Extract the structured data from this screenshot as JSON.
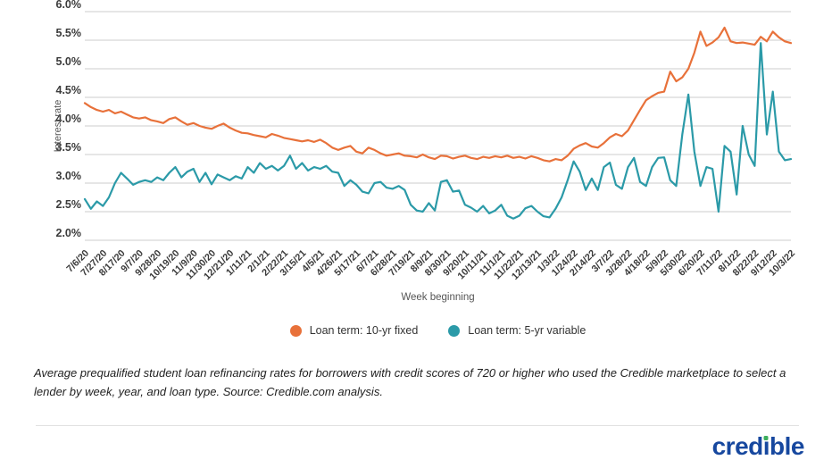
{
  "chart": {
    "y_axis_title": "Interest rate",
    "x_axis_title": "Week beginning"
  },
  "chart_data": {
    "type": "line",
    "title": "",
    "xlabel": "Week beginning",
    "ylabel": "Interest rate",
    "ylim": [
      2.0,
      6.0
    ],
    "grid": true,
    "legend_position": "bottom-center",
    "y_ticks": [
      6.0,
      5.5,
      5.0,
      4.5,
      4.0,
      3.5,
      3.0,
      2.5,
      2.0
    ],
    "y_tick_labels": [
      "6.0%",
      "5.5%",
      "5.0%",
      "4.5%",
      "4.0%",
      "3.5%",
      "3.0%",
      "2.5%",
      "2.0%"
    ],
    "x_tick_every_n_points": 3,
    "x_tick_labels": [
      "7/6/20",
      "7/27/20",
      "8/17/20",
      "9/7/20",
      "9/28/20",
      "10/19/20",
      "11/9/20",
      "11/30/20",
      "12/21/20",
      "1/11/21",
      "2/1/21",
      "2/22/21",
      "3/15/21",
      "4/5/21",
      "4/26/21",
      "5/17/21",
      "6/7/21",
      "6/28/21",
      "7/19/21",
      "8/9/21",
      "8/30/21",
      "9/20/21",
      "10/11/21",
      "11/1/21",
      "11/22/21",
      "12/13/21",
      "1/3/22",
      "1/24/22",
      "2/14/22",
      "3/7/22",
      "3/28/22",
      "4/18/22",
      "5/9/22",
      "5/30/22",
      "6/20/22",
      "7/11/22",
      "8/1/22",
      "8/22/22",
      "9/12/22",
      "10/3/22"
    ],
    "x_unit": "weekly data points, one per week from 7/6/20 to 10/3/22",
    "series": [
      {
        "name": "Loan term: 10-yr fixed",
        "color": "#E8713A",
        "values": [
          4.4,
          4.33,
          4.28,
          4.25,
          4.28,
          4.22,
          4.25,
          4.2,
          4.15,
          4.13,
          4.15,
          4.1,
          4.08,
          4.05,
          4.12,
          4.15,
          4.08,
          4.02,
          4.05,
          4.0,
          3.97,
          3.95,
          4.0,
          4.04,
          3.97,
          3.92,
          3.88,
          3.87,
          3.84,
          3.82,
          3.8,
          3.86,
          3.83,
          3.79,
          3.77,
          3.75,
          3.73,
          3.75,
          3.72,
          3.76,
          3.7,
          3.62,
          3.58,
          3.62,
          3.65,
          3.55,
          3.52,
          3.62,
          3.58,
          3.52,
          3.48,
          3.5,
          3.52,
          3.48,
          3.47,
          3.45,
          3.5,
          3.45,
          3.42,
          3.48,
          3.47,
          3.43,
          3.46,
          3.48,
          3.44,
          3.42,
          3.46,
          3.44,
          3.47,
          3.45,
          3.48,
          3.44,
          3.46,
          3.43,
          3.47,
          3.44,
          3.4,
          3.38,
          3.42,
          3.4,
          3.48,
          3.6,
          3.66,
          3.7,
          3.64,
          3.62,
          3.7,
          3.8,
          3.86,
          3.82,
          3.92,
          4.1,
          4.28,
          4.45,
          4.52,
          4.58,
          4.6,
          4.95,
          4.78,
          4.85,
          5.0,
          5.28,
          5.65,
          5.4,
          5.46,
          5.55,
          5.72,
          5.48,
          5.45,
          5.46,
          5.44,
          5.42,
          5.56,
          5.48,
          5.65,
          5.55,
          5.48,
          5.45
        ]
      },
      {
        "name": "Loan term: 5-yr variable",
        "color": "#2B9AA8",
        "values": [
          2.72,
          2.55,
          2.68,
          2.6,
          2.75,
          3.0,
          3.18,
          3.08,
          2.97,
          3.02,
          3.05,
          3.02,
          3.1,
          3.05,
          3.18,
          3.28,
          3.1,
          3.2,
          3.25,
          3.02,
          3.18,
          2.98,
          3.15,
          3.1,
          3.05,
          3.12,
          3.08,
          3.28,
          3.18,
          3.35,
          3.25,
          3.3,
          3.22,
          3.3,
          3.48,
          3.25,
          3.35,
          3.22,
          3.28,
          3.25,
          3.3,
          3.2,
          3.18,
          2.95,
          3.05,
          2.97,
          2.85,
          2.82,
          3.0,
          3.02,
          2.92,
          2.9,
          2.95,
          2.88,
          2.62,
          2.52,
          2.5,
          2.65,
          2.52,
          3.02,
          3.05,
          2.85,
          2.87,
          2.62,
          2.57,
          2.5,
          2.6,
          2.47,
          2.52,
          2.62,
          2.43,
          2.38,
          2.43,
          2.56,
          2.6,
          2.5,
          2.42,
          2.4,
          2.55,
          2.75,
          3.05,
          3.38,
          3.2,
          2.88,
          3.08,
          2.88,
          3.28,
          3.36,
          2.97,
          2.9,
          3.28,
          3.44,
          3.02,
          2.95,
          3.28,
          3.44,
          3.45,
          3.05,
          2.95,
          3.85,
          4.55,
          3.55,
          2.95,
          3.28,
          3.25,
          2.5,
          3.65,
          3.55,
          2.8,
          4.0,
          3.5,
          3.3,
          5.45,
          3.85,
          4.6,
          3.55,
          3.4,
          3.42
        ]
      }
    ]
  },
  "legend": {
    "items": [
      {
        "label": "Loan term: 10-yr fixed",
        "color": "#E8713A"
      },
      {
        "label": "Loan term: 5-yr variable",
        "color": "#2B9AA8"
      }
    ]
  },
  "footnote": "Average prequalified student loan refinancing rates for borrowers with credit scores of 720 or higher who used the Credible marketplace to select a lender by week, year, and loan type. Source: Credible.com analysis.",
  "logo": {
    "name": "credible",
    "pre": "cred",
    "i_char": "ı",
    "post": "ble",
    "text_color": "#17489F",
    "dot_color": "#3CAE5C"
  },
  "colors": {
    "gridline": "#cccccc",
    "axis_text": "#3b3b3b",
    "axis_title": "#555555",
    "divider": "#e2e2e2"
  }
}
